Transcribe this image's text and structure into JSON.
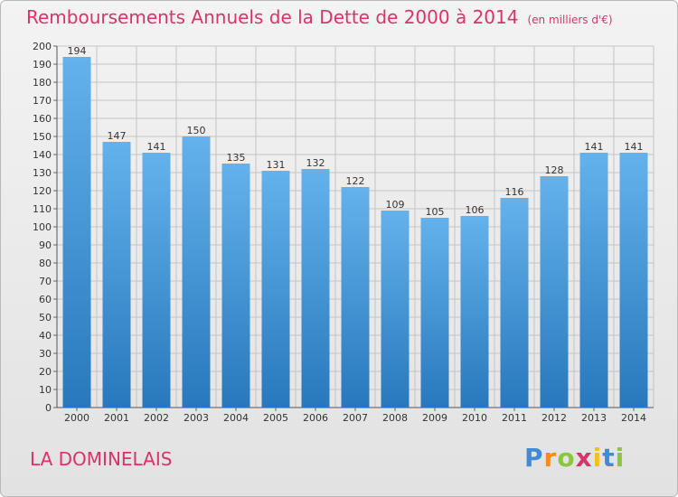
{
  "chart_data": {
    "type": "bar",
    "title": "Remboursements Annuels de la Dette de 2000 à 2014",
    "subtitle": "(en milliers d'€)",
    "categories": [
      "2000",
      "2001",
      "2002",
      "2003",
      "2004",
      "2005",
      "2006",
      "2007",
      "2008",
      "2009",
      "2010",
      "2011",
      "2012",
      "2013",
      "2014"
    ],
    "values": [
      194,
      147,
      141,
      150,
      135,
      131,
      132,
      122,
      109,
      105,
      106,
      116,
      128,
      141,
      141
    ],
    "ylim": [
      0,
      200
    ],
    "ytick_step": 10,
    "xlabel": "",
    "ylabel": "",
    "grid": true,
    "legend": "none"
  },
  "location": {
    "name": "LA DOMINELAIS"
  },
  "brand": {
    "letters": [
      "P",
      "r",
      "o",
      "x",
      "i",
      "t",
      "i"
    ],
    "colors": [
      "#3f8bd8",
      "#f28c1c",
      "#8cc63f",
      "#d8336a",
      "#f2c21c",
      "#3f8bd8",
      "#8cc63f"
    ]
  },
  "colors": {
    "title": "#d8336a",
    "bar_light": "#64b2ec",
    "bar_dark": "#2778bd",
    "grid": "#c4c4c4"
  }
}
